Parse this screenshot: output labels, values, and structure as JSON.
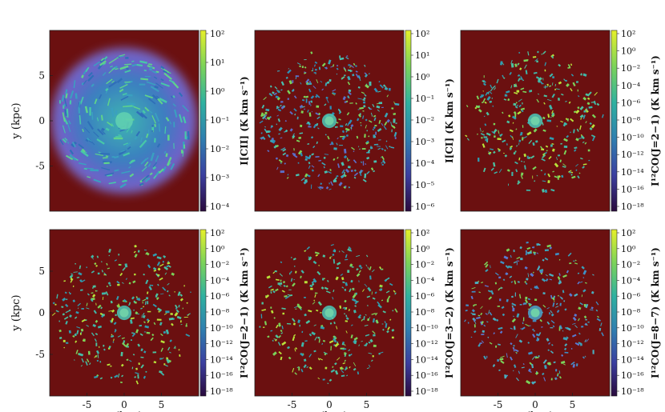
{
  "figure": {
    "background": "#6b1010",
    "colorbar_colors": [
      "#2a0a3d",
      "#3b3fa0",
      "#2f7fb0",
      "#2fb1a0",
      "#7bd35a",
      "#e6f02a"
    ]
  },
  "chart_data": [
    {
      "type": "heatmap",
      "panel": "top-left",
      "xlabel": "",
      "ylabel": "y  (kpc)",
      "xticks": [],
      "yticks": [
        "5",
        "0",
        "-5"
      ],
      "yticks_values": [
        5,
        0,
        -5
      ],
      "xlim": [
        -10,
        10
      ],
      "ylim": [
        -10,
        10
      ],
      "colorbar": {
        "label": "I[CII] (K km s⁻¹)",
        "scale": "log",
        "ticks": [
          "10²",
          "10¹",
          "10⁰",
          "10⁻¹",
          "10⁻²",
          "10⁻³",
          "10⁻⁴"
        ],
        "range": [
          -4,
          2
        ]
      },
      "style": "diffuse"
    },
    {
      "type": "heatmap",
      "panel": "top-middle",
      "xlabel": "",
      "ylabel": "",
      "xticks": [],
      "yticks": [],
      "xlim": [
        -10,
        10
      ],
      "ylim": [
        -10,
        10
      ],
      "colorbar": {
        "label": "I[CI] (K km s⁻¹)",
        "scale": "log",
        "ticks": [
          "10²",
          "10¹",
          "10⁰",
          "10⁻¹",
          "10⁻²",
          "10⁻³",
          "10⁻⁴",
          "10⁻⁵",
          "10⁻⁶"
        ],
        "range": [
          -6,
          2
        ]
      },
      "style": "clumpy"
    },
    {
      "type": "heatmap",
      "panel": "top-right",
      "xlabel": "",
      "ylabel": "",
      "xticks": [],
      "yticks": [],
      "xlim": [
        -10,
        10
      ],
      "ylim": [
        -10,
        10
      ],
      "colorbar": {
        "label": "I¹²CO(J=2−1) (K km s⁻¹)",
        "scale": "log",
        "ticks": [
          "10²",
          "10⁰",
          "10⁻²",
          "10⁻⁴",
          "10⁻⁶",
          "10⁻⁸",
          "10⁻¹⁰",
          "10⁻¹²",
          "10⁻¹⁴",
          "10⁻¹⁶",
          "10⁻¹⁸"
        ],
        "range": [
          -18,
          2
        ]
      },
      "style": "sparse"
    },
    {
      "type": "heatmap",
      "panel": "bottom-left",
      "xlabel": "x  (kpc)",
      "ylabel": "y  (kpc)",
      "xticks": [
        "-5",
        "0",
        "5"
      ],
      "xticks_values": [
        -5,
        0,
        5
      ],
      "yticks": [
        "5",
        "0",
        "-5"
      ],
      "yticks_values": [
        5,
        0,
        -5
      ],
      "xlim": [
        -10,
        10
      ],
      "ylim": [
        -10,
        10
      ],
      "colorbar": {
        "label": "I¹²CO(J=2−1) (K km s⁻¹)",
        "scale": "log",
        "ticks": [
          "10²",
          "10⁰",
          "10⁻²",
          "10⁻⁴",
          "10⁻⁶",
          "10⁻⁸",
          "10⁻¹⁰",
          "10⁻¹²",
          "10⁻¹⁴",
          "10⁻¹⁶",
          "10⁻¹⁸"
        ],
        "range": [
          -18,
          2
        ]
      },
      "style": "sparse"
    },
    {
      "type": "heatmap",
      "panel": "bottom-middle",
      "xlabel": "x  (kpc)",
      "ylabel": "",
      "xticks": [
        "-5",
        "0",
        "5"
      ],
      "xticks_values": [
        -5,
        0,
        5
      ],
      "yticks": [],
      "xlim": [
        -10,
        10
      ],
      "ylim": [
        -10,
        10
      ],
      "colorbar": {
        "label": "I¹²CO(J=3−2) (K km s⁻¹)",
        "scale": "log",
        "ticks": [
          "10²",
          "10⁰",
          "10⁻²",
          "10⁻⁴",
          "10⁻⁶",
          "10⁻⁸",
          "10⁻¹⁰",
          "10⁻¹²",
          "10⁻¹⁴",
          "10⁻¹⁶",
          "10⁻¹⁸"
        ],
        "range": [
          -18,
          2
        ]
      },
      "style": "sparse"
    },
    {
      "type": "heatmap",
      "panel": "bottom-right",
      "xlabel": "x  (kpc)",
      "ylabel": "",
      "xticks": [
        "-5",
        "0",
        "5"
      ],
      "xticks_values": [
        -5,
        0,
        5
      ],
      "yticks": [],
      "xlim": [
        -10,
        10
      ],
      "ylim": [
        -10,
        10
      ],
      "colorbar": {
        "label": "I¹²CO(J=8−7) (K km s⁻¹)",
        "scale": "log",
        "ticks": [
          "10²",
          "10⁰",
          "10⁻²",
          "10⁻⁴",
          "10⁻⁶",
          "10⁻⁸",
          "10⁻¹⁰",
          "10⁻¹²",
          "10⁻¹⁴",
          "10⁻¹⁶",
          "10⁻¹⁸"
        ],
        "range": [
          -18,
          2
        ]
      },
      "style": "sparse-blue"
    }
  ]
}
